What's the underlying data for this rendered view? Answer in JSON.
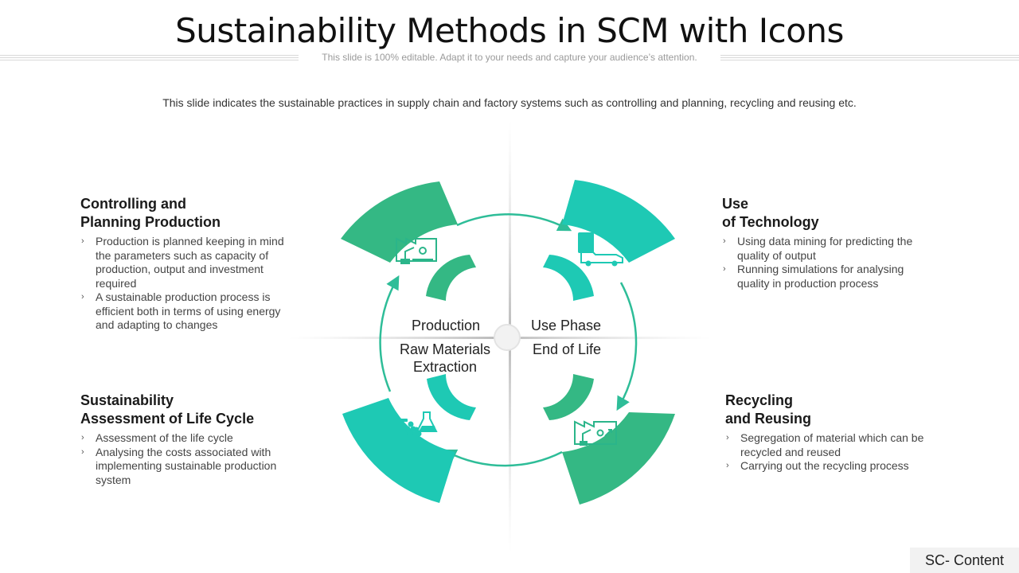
{
  "title": "Sustainability Methods in SCM with Icons",
  "subtitle": "This slide is 100% editable. Adapt it to your needs and capture your audience’s attention.",
  "intro": "This slide indicates the sustainable practices in supply chain and factory systems such as controlling and planning, recycling and reusing etc.",
  "colors": {
    "teal": "#1ec9b4",
    "green": "#34b884",
    "arrow": "#2ebd98",
    "divider": "#cfcfcf"
  },
  "blocks": {
    "top_left": {
      "heading_1": "Controlling and",
      "heading_2": "Planning Production",
      "bullets": [
        "Production is planned keeping in mind the parameters such as capacity of production, output and investment required",
        "A sustainable production process is efficient both in terms of using energy and adapting to changes"
      ]
    },
    "top_right": {
      "heading_1": "Use",
      "heading_2": "of Technology",
      "bullets": [
        "Using data mining for predicting the quality of output",
        "Running simulations for analysing quality in production process"
      ]
    },
    "bottom_left": {
      "heading_1": "Sustainability",
      "heading_2": "Assessment of Life Cycle",
      "bullets": [
        "Assessment of the life cycle",
        "Analysing the costs associated with implementing sustainable production system"
      ]
    },
    "bottom_right": {
      "heading_1": "Recycling",
      "heading_2": "and Reusing",
      "bullets": [
        "Segregation of material which can be recycled and reused",
        "Carrying out the recycling process"
      ]
    }
  },
  "diagram": {
    "labels": {
      "production": "Production",
      "use_phase": "Use Phase",
      "raw_materials_1": "Raw Materials",
      "raw_materials_2": "Extraction",
      "end_of_life": "End of Life"
    },
    "icons": {
      "top_left": "factory-robot-icon",
      "top_right": "truck-icon",
      "bottom_left": "raw-materials-icon",
      "bottom_right": "factory-recycling-icon"
    }
  },
  "footer_tag": "SC- Content",
  "bullet_glyph": "›"
}
